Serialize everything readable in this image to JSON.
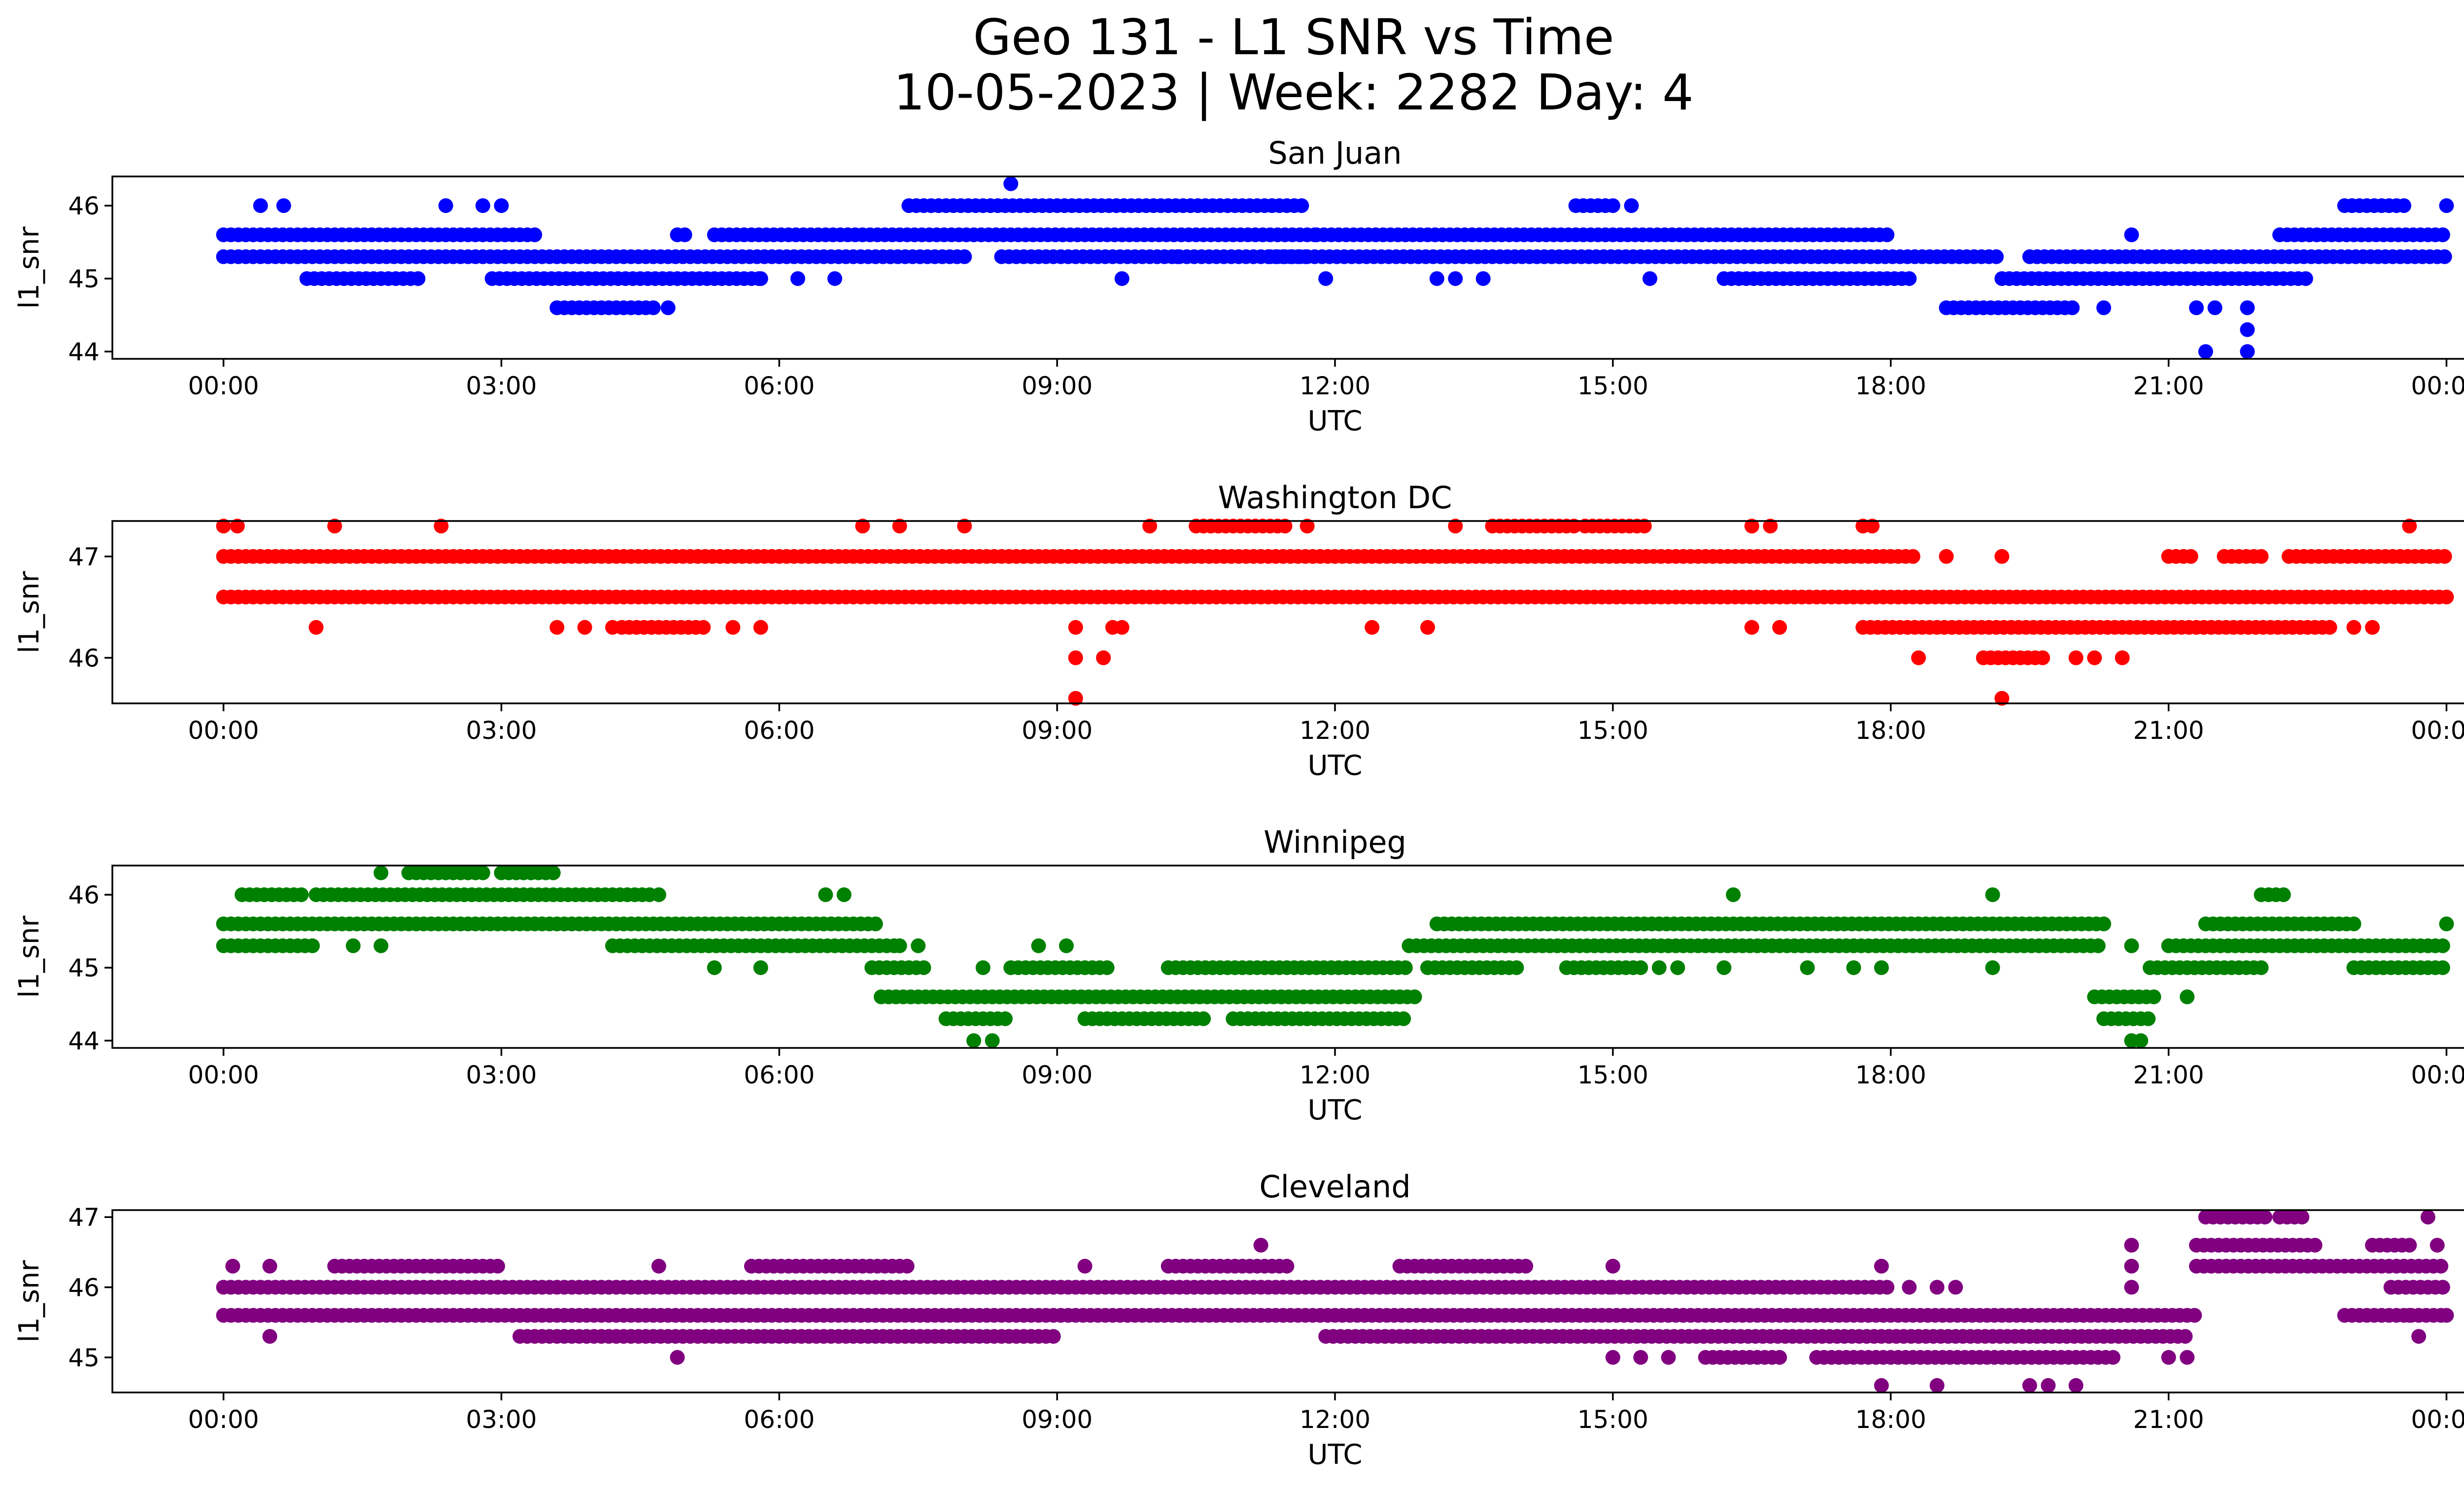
{
  "figure": {
    "title_line1": "Geo 131 - L1 SNR vs Time",
    "title_line2": "10-05-2023 | Week: 2282 Day: 4"
  },
  "chart_data": [
    {
      "type": "scatter",
      "title": "San Juan",
      "xlabel": "UTC",
      "ylabel": "l1_snr",
      "color": "#0000ff",
      "xlim_hours": [
        -1.2,
        25.2
      ],
      "ylim": [
        43.9,
        46.4
      ],
      "xticks": [
        "00:00",
        "03:00",
        "06:00",
        "09:00",
        "12:00",
        "15:00",
        "18:00",
        "21:00",
        "00:00"
      ],
      "yticks": [
        44,
        45,
        46
      ],
      "grid": false,
      "bands": [
        {
          "y": 45.6,
          "ranges": [
            [
              0.0,
              3.4
            ],
            [
              4.9,
              5.0
            ],
            [
              5.3,
              11.8
            ],
            [
              11.8,
              18.0
            ],
            [
              22.2,
              24.0
            ]
          ]
        },
        {
          "y": 45.3,
          "ranges": [
            [
              0.0,
              8.0
            ],
            [
              8.4,
              11.7
            ],
            [
              11.3,
              19.2
            ],
            [
              19.5,
              24.0
            ]
          ]
        },
        {
          "y": 46.0,
          "ranges": [
            [
              7.4,
              11.7
            ],
            [
              14.6,
              15.0
            ],
            [
              22.9,
              23.6
            ]
          ]
        },
        {
          "y": 45.0,
          "ranges": [
            [
              0.9,
              2.1
            ],
            [
              2.9,
              5.8
            ],
            [
              16.2,
              18.2
            ],
            [
              19.2,
              22.5
            ]
          ]
        },
        {
          "y": 44.6,
          "ranges": [
            [
              3.6,
              4.7
            ],
            [
              18.6,
              20.0
            ]
          ]
        }
      ],
      "points": [
        [
          0.4,
          46.0
        ],
        [
          0.65,
          46.0
        ],
        [
          2.4,
          46.0
        ],
        [
          2.8,
          46.0
        ],
        [
          3.0,
          46.0
        ],
        [
          8.5,
          46.3
        ],
        [
          9.7,
          45.0
        ],
        [
          10.3,
          45.3
        ],
        [
          11.9,
          45.0
        ],
        [
          13.1,
          45.0
        ],
        [
          13.3,
          45.0
        ],
        [
          13.6,
          45.0
        ],
        [
          15.2,
          46.0
        ],
        [
          15.4,
          45.0
        ],
        [
          20.6,
          45.6
        ],
        [
          20.3,
          44.6
        ],
        [
          21.3,
          44.6
        ],
        [
          21.5,
          44.6
        ],
        [
          21.4,
          44.0
        ],
        [
          21.85,
          44.6
        ],
        [
          21.85,
          44.3
        ],
        [
          21.85,
          44.0
        ],
        [
          5.8,
          45.0
        ],
        [
          6.6,
          45.0
        ],
        [
          4.8,
          44.6
        ],
        [
          7.2,
          45.3
        ],
        [
          24.0,
          46.0
        ],
        [
          6.2,
          45.0
        ]
      ]
    },
    {
      "type": "scatter",
      "title": "Washington DC",
      "xlabel": "UTC",
      "ylabel": "l1_snr",
      "color": "#ff0000",
      "xlim_hours": [
        -1.2,
        25.2
      ],
      "ylim": [
        45.55,
        47.35
      ],
      "xticks": [
        "00:00",
        "03:00",
        "06:00",
        "09:00",
        "12:00",
        "15:00",
        "18:00",
        "21:00",
        "00:00"
      ],
      "yticks": [
        46,
        47
      ],
      "grid": false,
      "bands": [
        {
          "y": 46.6,
          "ranges": [
            [
              0.0,
              24.0
            ]
          ]
        },
        {
          "y": 47.0,
          "ranges": [
            [
              0.0,
              18.3
            ],
            [
              21.0,
              21.3
            ],
            [
              21.6,
              22.0
            ],
            [
              22.3,
              24.0
            ]
          ]
        },
        {
          "y": 46.3,
          "ranges": [
            [
              4.3,
              5.2
            ],
            [
              17.7,
              22.8
            ]
          ]
        },
        {
          "y": 47.3,
          "ranges": [
            [
              10.5,
              11.5
            ],
            [
              13.7,
              14.6
            ],
            [
              14.7,
              15.4
            ]
          ]
        },
        {
          "y": 46.0,
          "ranges": [
            [
              19.0,
              19.7
            ]
          ]
        }
      ],
      "points": [
        [
          0.0,
          47.3
        ],
        [
          0.15,
          47.3
        ],
        [
          1.2,
          47.3
        ],
        [
          2.35,
          47.3
        ],
        [
          6.9,
          47.3
        ],
        [
          7.3,
          47.3
        ],
        [
          8.0,
          47.3
        ],
        [
          10.0,
          47.3
        ],
        [
          11.7,
          47.3
        ],
        [
          13.3,
          47.3
        ],
        [
          16.5,
          47.3
        ],
        [
          16.7,
          47.3
        ],
        [
          17.7,
          47.3
        ],
        [
          17.8,
          47.3
        ],
        [
          23.6,
          47.3
        ],
        [
          1.0,
          46.3
        ],
        [
          3.6,
          46.3
        ],
        [
          3.9,
          46.3
        ],
        [
          4.2,
          46.3
        ],
        [
          5.5,
          46.3
        ],
        [
          5.8,
          46.3
        ],
        [
          9.2,
          46.3
        ],
        [
          9.6,
          46.3
        ],
        [
          9.7,
          46.3
        ],
        [
          12.4,
          46.3
        ],
        [
          13.0,
          46.3
        ],
        [
          16.5,
          46.3
        ],
        [
          16.8,
          46.3
        ],
        [
          23.0,
          46.3
        ],
        [
          9.2,
          46.0
        ],
        [
          9.5,
          46.0
        ],
        [
          18.3,
          46.0
        ],
        [
          20.0,
          46.0
        ],
        [
          20.2,
          46.0
        ],
        [
          20.5,
          46.0
        ],
        [
          9.2,
          45.6
        ],
        [
          19.2,
          45.6
        ],
        [
          18.6,
          47.0
        ],
        [
          19.2,
          47.0
        ],
        [
          23.2,
          46.3
        ]
      ]
    },
    {
      "type": "scatter",
      "title": "Winnipeg",
      "xlabel": "UTC",
      "ylabel": "l1_snr",
      "color": "#008000",
      "xlim_hours": [
        -1.2,
        25.2
      ],
      "ylim": [
        43.9,
        46.4
      ],
      "xticks": [
        "00:00",
        "03:00",
        "06:00",
        "09:00",
        "12:00",
        "15:00",
        "18:00",
        "21:00",
        "00:00"
      ],
      "yticks": [
        44,
        45,
        46
      ],
      "grid": false,
      "bands": [
        {
          "y": 45.6,
          "ranges": [
            [
              0.0,
              7.1
            ],
            [
              13.1,
              20.3
            ],
            [
              21.4,
              23.0
            ]
          ]
        },
        {
          "y": 45.3,
          "ranges": [
            [
              0.0,
              1.0
            ],
            [
              4.2,
              7.3
            ],
            [
              12.8,
              20.3
            ],
            [
              21.0,
              24.0
            ]
          ]
        },
        {
          "y": 46.0,
          "ranges": [
            [
              0.2,
              0.9
            ],
            [
              1.0,
              4.6
            ],
            [
              22.0,
              22.3
            ]
          ]
        },
        {
          "y": 46.3,
          "ranges": [
            [
              2.0,
              2.8
            ],
            [
              3.0,
              3.6
            ]
          ]
        },
        {
          "y": 45.0,
          "ranges": [
            [
              7.0,
              7.6
            ],
            [
              8.5,
              9.6
            ],
            [
              10.2,
              12.8
            ],
            [
              13.0,
              14.0
            ],
            [
              14.5,
              15.3
            ],
            [
              20.8,
              22.0
            ],
            [
              23.0,
              24.0
            ]
          ]
        },
        {
          "y": 44.6,
          "ranges": [
            [
              7.1,
              12.9
            ],
            [
              20.2,
              20.9
            ]
          ]
        },
        {
          "y": 44.3,
          "ranges": [
            [
              7.8,
              8.5
            ],
            [
              9.3,
              10.6
            ],
            [
              10.9,
              12.8
            ],
            [
              20.3,
              20.8
            ]
          ]
        }
      ],
      "points": [
        [
          1.7,
          46.3
        ],
        [
          6.5,
          46.0
        ],
        [
          6.7,
          46.0
        ],
        [
          16.3,
          46.0
        ],
        [
          19.1,
          46.0
        ],
        [
          5.3,
          45.0
        ],
        [
          5.8,
          45.0
        ],
        [
          15.5,
          45.0
        ],
        [
          15.7,
          45.0
        ],
        [
          16.2,
          45.0
        ],
        [
          17.1,
          45.0
        ],
        [
          17.6,
          45.0
        ],
        [
          17.9,
          45.0
        ],
        [
          19.1,
          45.0
        ],
        [
          8.2,
          45.0
        ],
        [
          7.3,
          45.3
        ],
        [
          7.5,
          45.3
        ],
        [
          8.8,
          45.3
        ],
        [
          9.1,
          45.3
        ],
        [
          20.6,
          45.3
        ],
        [
          8.1,
          44.0
        ],
        [
          8.3,
          44.0
        ],
        [
          20.6,
          44.0
        ],
        [
          20.7,
          44.0
        ],
        [
          21.2,
          44.6
        ],
        [
          1.4,
          45.3
        ],
        [
          1.7,
          45.3
        ],
        [
          4.7,
          46.0
        ],
        [
          24.0,
          45.6
        ]
      ]
    },
    {
      "type": "scatter",
      "title": "Cleveland",
      "xlabel": "UTC",
      "ylabel": "l1_snr",
      "color": "#800080",
      "xlim_hours": [
        -1.2,
        25.2
      ],
      "ylim": [
        44.5,
        47.1
      ],
      "xticks": [
        "00:00",
        "03:00",
        "06:00",
        "09:00",
        "12:00",
        "15:00",
        "18:00",
        "21:00",
        "00:00"
      ],
      "yticks": [
        45,
        46,
        47
      ],
      "grid": false,
      "bands": [
        {
          "y": 45.6,
          "ranges": [
            [
              0.0,
              21.3
            ],
            [
              22.9,
              24.0
            ]
          ]
        },
        {
          "y": 46.0,
          "ranges": [
            [
              0.0,
              15.0
            ],
            [
              15.0,
              18.0
            ],
            [
              23.4,
              24.0
            ]
          ]
        },
        {
          "y": 45.3,
          "ranges": [
            [
              3.2,
              9.0
            ],
            [
              11.9,
              21.2
            ]
          ]
        },
        {
          "y": 46.3,
          "ranges": [
            [
              1.2,
              3.0
            ],
            [
              5.7,
              7.4
            ],
            [
              10.2,
              11.5
            ],
            [
              12.7,
              14.1
            ],
            [
              21.3,
              24.0
            ]
          ]
        },
        {
          "y": 45.0,
          "ranges": [
            [
              16.0,
              16.8
            ],
            [
              17.2,
              20.4
            ]
          ]
        },
        {
          "y": 46.6,
          "ranges": [
            [
              21.3,
              22.6
            ],
            [
              23.2,
              23.6
            ]
          ]
        },
        {
          "y": 47.0,
          "ranges": [
            [
              21.4,
              22.1
            ],
            [
              22.2,
              22.5
            ]
          ]
        }
      ],
      "points": [
        [
          0.1,
          46.3
        ],
        [
          0.5,
          46.3
        ],
        [
          0.5,
          45.3
        ],
        [
          11.2,
          46.6
        ],
        [
          4.9,
          45.0
        ],
        [
          15.0,
          46.3
        ],
        [
          15.0,
          45.0
        ],
        [
          15.3,
          45.0
        ],
        [
          15.6,
          45.0
        ],
        [
          17.9,
          46.3
        ],
        [
          18.2,
          46.0
        ],
        [
          18.5,
          46.0
        ],
        [
          18.7,
          46.0
        ],
        [
          17.9,
          44.6
        ],
        [
          18.5,
          44.6
        ],
        [
          19.5,
          44.6
        ],
        [
          19.7,
          44.6
        ],
        [
          20.0,
          44.6
        ],
        [
          20.6,
          46.6
        ],
        [
          20.6,
          46.3
        ],
        [
          20.6,
          46.0
        ],
        [
          21.0,
          45.0
        ],
        [
          21.2,
          45.0
        ],
        [
          23.8,
          47.0
        ],
        [
          23.7,
          45.3
        ],
        [
          23.9,
          46.6
        ],
        [
          24.0,
          45.6
        ],
        [
          9.3,
          46.3
        ],
        [
          4.7,
          46.3
        ],
        [
          23.6,
          45.6
        ]
      ]
    }
  ]
}
